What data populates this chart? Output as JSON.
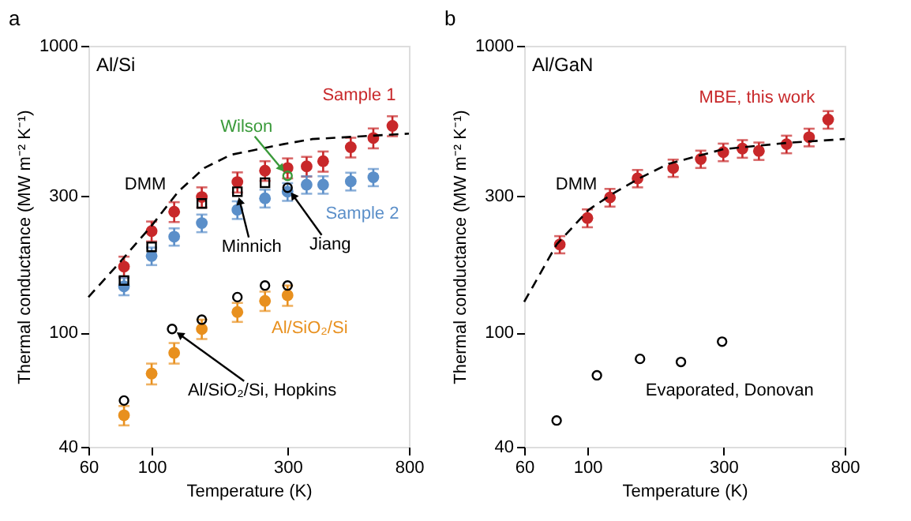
{
  "chart_data": [
    {
      "type": "scatter",
      "title": "a",
      "xlabel": "Temperature (K)",
      "ylabel": "Thermal conductance (MW m⁻² K⁻¹)",
      "log": "xy",
      "xlim": [
        60,
        800
      ],
      "xticks": [
        60,
        100,
        300,
        800
      ],
      "ylim": [
        40,
        1000
      ],
      "yticks": [
        40,
        100,
        300,
        1000
      ],
      "grid": false,
      "annotations": [
        "Al/Si",
        {
          "text": "Sample 1",
          "x": 600,
          "y": 477
        },
        {
          "text": "Sample 2",
          "x": 600,
          "y": 348
        },
        {
          "text": "DMM",
          "x": 100,
          "y": 236
        },
        {
          "text": "Wilson",
          "x": 300,
          "y": 352
        },
        {
          "text": "Minnich",
          "x": 200,
          "y": 310
        },
        {
          "text": "Jiang",
          "x": 300,
          "y": 320
        },
        {
          "text": "Al/SiO₂/Si",
          "x": 300,
          "y": 135
        },
        {
          "text": "Al/SiO₂/Si, Hopkins",
          "x": 118,
          "y": 103
        }
      ],
      "series": [
        {
          "color": "#c8282a",
          "marker": "circle",
          "x": [
            80,
            100,
            120,
            150,
            200,
            250,
            300,
            350,
            400,
            500,
            600,
            700
          ],
          "values": [
            170,
            226,
            264,
            297,
            335,
            367,
            375,
            380,
            396,
            443,
            477,
            526
          ],
          "errors": [
            14,
            18,
            21,
            24,
            27,
            29,
            30,
            30,
            32,
            35,
            38,
            42
          ]
        },
        {
          "color": "#5b8fc9",
          "marker": "circle",
          "x": [
            80,
            100,
            120,
            150,
            200,
            250,
            300,
            350,
            400,
            500,
            600
          ],
          "values": [
            145,
            185,
            216,
            241,
            268,
            294,
            310,
            328,
            328,
            337,
            348
          ],
          "errors": [
            10,
            13,
            15,
            17,
            19,
            21,
            22,
            23,
            23,
            24,
            24
          ]
        },
        {
          "color": "#e8901e",
          "marker": "circle",
          "x": [
            80,
            100,
            120,
            150,
            200,
            250,
            300
          ],
          "values": [
            51.5,
            72,
            85,
            103,
            118,
            129,
            135
          ],
          "errors": [
            4,
            6,
            7,
            8,
            9,
            10,
            11
          ]
        },
        {
          "color": "#000000",
          "marker": "circle",
          "x": [
            80,
            118,
            150,
            200,
            250,
            300
          ],
          "values": [
            58,
            103,
            111,
            133,
            146,
            146
          ]
        },
        {
          "color": "#000000",
          "marker": "square",
          "x": [
            80,
            100,
            150,
            200,
            250
          ],
          "values": [
            152,
            199,
            282,
            310,
            333
          ]
        },
        {
          "color": "#000000",
          "marker": "circle",
          "x": [
            300
          ],
          "values": [
            320
          ]
        },
        {
          "color": "#3a9a3a",
          "marker": "circle",
          "x": [
            300
          ],
          "values": [
            352
          ]
        },
        {
          "type": "line",
          "color": "#000000",
          "line_style": "dashed",
          "marker": "none",
          "x": [
            60,
            77,
            100,
            124,
            153,
            190,
            290,
            367,
            800
          ],
          "values": [
            133,
            175,
            236,
            310,
            375,
            417,
            454,
            473,
            494
          ]
        }
      ]
    },
    {
      "type": "scatter",
      "title": "b",
      "xlabel": "Temperature (K)",
      "ylabel": "Thermal conductance (MW m⁻² K⁻¹)",
      "log": "xy",
      "xlim": [
        60,
        800
      ],
      "xticks": [
        60,
        100,
        300,
        800
      ],
      "ylim": [
        40,
        1000
      ],
      "yticks": [
        40,
        100,
        300,
        1000
      ],
      "grid": false,
      "annotations": [
        "Al/GaN",
        {
          "text": "MBE, this work",
          "x": 600,
          "y": 480
        },
        {
          "text": "DMM",
          "x": 100,
          "y": 268
        },
        {
          "text": "Evaporated, Donovan",
          "x": 300,
          "y": 93
        }
      ],
      "series": [
        {
          "color": "#c8282a",
          "marker": "circle",
          "x": [
            80,
            100,
            120,
            150,
            200,
            250,
            300,
            350,
            400,
            500,
            600,
            700
          ],
          "values": [
            203,
            251,
            296,
            345,
            375,
            403,
            426,
            438,
            430,
            454,
            480,
            553
          ],
          "errors": [
            14,
            18,
            21,
            24,
            26,
            28,
            30,
            31,
            30,
            32,
            34,
            39
          ]
        },
        {
          "color": "#000000",
          "marker": "circle",
          "x": [
            78,
            108,
            153,
            213,
            297
          ],
          "values": [
            49.4,
            71,
            81,
            79,
            93
          ]
        },
        {
          "type": "line",
          "color": "#000000",
          "line_style": "dashed",
          "marker": "none",
          "x": [
            60,
            78,
            101,
            122,
            152,
            193,
            300,
            506,
            800
          ],
          "values": [
            128,
            203,
            268,
            304,
            345,
            388,
            436,
            459,
            473
          ]
        }
      ]
    }
  ]
}
